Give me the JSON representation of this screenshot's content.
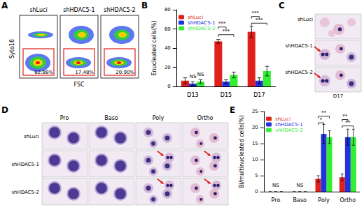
{
  "panel_labels": [
    "A",
    "B",
    "C",
    "D",
    "E"
  ],
  "panel_a": {
    "samples": [
      "shLuci",
      "shHDAC5-1",
      "shHDAC5-2"
    ],
    "gate_labels": [
      "62.86%",
      "17.48%",
      "20.90%"
    ],
    "y_label": "Syto16",
    "x_label": "FSC"
  },
  "panel_c": {
    "samples": [
      "shLuci",
      "shHDAC5-1",
      "shHDAC5-2"
    ],
    "day": "D17"
  },
  "panel_d": {
    "stages": [
      "Pro",
      "Baso",
      "Poly",
      "Ortho"
    ],
    "samples": [
      "shLuci",
      "shHDAC5-1",
      "shHDAC5-2"
    ]
  },
  "chart_data": [
    {
      "type": "bar",
      "categories": [
        "D13",
        "D15",
        "D17"
      ],
      "series": [
        {
          "name": "shLuci",
          "color": "#e0201b",
          "values": [
            6,
            47,
            57
          ],
          "errors": [
            3,
            2,
            6
          ]
        },
        {
          "name": "shHDAC5-1",
          "color": "#2233dd",
          "values": [
            3,
            5,
            6
          ],
          "errors": [
            2,
            2,
            3
          ]
        },
        {
          "name": "shHDAC5-2",
          "color": "#33ee33",
          "values": [
            5,
            12,
            16
          ],
          "errors": [
            2,
            3,
            5
          ]
        }
      ],
      "y_label": "Enucleated cells(%)",
      "ylim": [
        0,
        80
      ],
      "yticks": [
        0,
        20,
        40,
        60,
        80
      ],
      "legend": "top-left",
      "annotations": [
        {
          "x": "D13",
          "between": [
            "shHDAC5-1"
          ],
          "y": 7,
          "text": "NS"
        },
        {
          "x": "D13",
          "between": [
            "shHDAC5-2"
          ],
          "y": 9,
          "text": "NS"
        },
        {
          "x": "D15",
          "between": [
            "shLuci",
            "shHDAC5-2"
          ],
          "y": 54,
          "text": "***"
        },
        {
          "x": "D15",
          "between": [
            "shLuci",
            "shHDAC5-1"
          ],
          "y": 62,
          "text": "***"
        },
        {
          "x": "D17",
          "between": [
            "shLuci",
            "shHDAC5-2"
          ],
          "y": 66,
          "text": "***"
        },
        {
          "x": "D17",
          "between": [
            "shLuci",
            "shHDAC5-1"
          ],
          "y": 73,
          "text": "***"
        }
      ]
    },
    {
      "type": "bar",
      "categories": [
        "Pro",
        "Baso",
        "Poly",
        "Ortho"
      ],
      "series": [
        {
          "name": "shLuci",
          "color": "#e0201b",
          "values": [
            0,
            0,
            4,
            4.5
          ],
          "errors": [
            0,
            0,
            1,
            1
          ]
        },
        {
          "name": "shHDAC5-1",
          "color": "#2233dd",
          "values": [
            0,
            0,
            18,
            17
          ],
          "errors": [
            0,
            0,
            3,
            2.5
          ]
        },
        {
          "name": "shHDAC5-2",
          "color": "#33ee33",
          "values": [
            0,
            0,
            17,
            17
          ],
          "errors": [
            0,
            0,
            2,
            2.5
          ]
        }
      ],
      "y_label": "Bi/multinucleated cells(%)",
      "ylim": [
        0,
        25
      ],
      "yticks": [
        0,
        5,
        10,
        15,
        20,
        25
      ],
      "legend": "top-left",
      "annotations": [
        {
          "x": "Pro",
          "between": [
            "shHDAC5-1"
          ],
          "y": 1,
          "text": "NS"
        },
        {
          "x": "Baso",
          "between": [
            "shHDAC5-1"
          ],
          "y": 1,
          "text": "NS"
        },
        {
          "x": "Poly",
          "between": [
            "shLuci",
            "shHDAC5-1"
          ],
          "y": 21.5,
          "text": "*"
        },
        {
          "x": "Poly",
          "between": [
            "shLuci",
            "shHDAC5-2"
          ],
          "y": 23.5,
          "text": "**"
        },
        {
          "x": "Ortho",
          "between": [
            "shLuci",
            "shHDAC5-2"
          ],
          "y": 20.5,
          "text": "**"
        },
        {
          "x": "Ortho",
          "between": [
            "shLuci",
            "shHDAC5-1"
          ],
          "y": 22.5,
          "text": "**"
        }
      ]
    }
  ]
}
